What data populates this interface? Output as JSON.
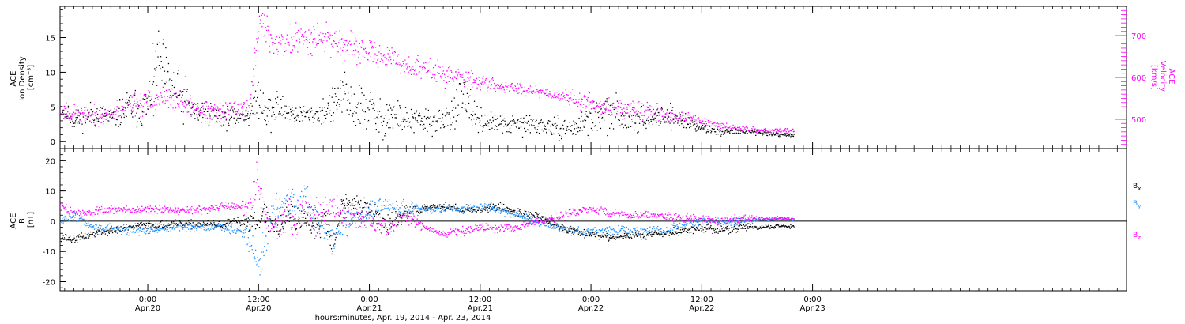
{
  "x_axis_label": "hours:minutes, Apr. 19, 2014 - Apr. 23, 2014",
  "chart_data": [
    {
      "type": "scatter",
      "panel": "top",
      "ylabel_lines": [
        "ACE",
        "Ion Density",
        "[cm⁻³]"
      ],
      "ylabel_right_lines": [
        "ACE",
        "Velocity",
        "[km/s]"
      ],
      "x_range_hours": [
        -9.5,
        106
      ],
      "ylim_left": [
        -1,
        19.5
      ],
      "ylim_right": [
        430,
        770
      ],
      "yticks_left": [
        0,
        5,
        10,
        15
      ],
      "yticks_right": [
        500,
        600,
        700
      ],
      "x_ticks": [
        {
          "hours": 0,
          "time": "0:00",
          "date": "Apr.20"
        },
        {
          "hours": 12,
          "time": "12:00",
          "date": "Apr.20"
        },
        {
          "hours": 24,
          "time": "0:00",
          "date": "Apr.21"
        },
        {
          "hours": 36,
          "time": "12:00",
          "date": "Apr.21"
        },
        {
          "hours": 48,
          "time": "0:00",
          "date": "Apr.22"
        },
        {
          "hours": 60,
          "time": "12:00",
          "date": "Apr.22"
        },
        {
          "hours": 72,
          "time": "0:00",
          "date": "Apr.23"
        }
      ],
      "series": [
        {
          "axis": "left",
          "color": "#000000",
          "x": [
            -9.5,
            -8,
            -6,
            -4,
            -2,
            0,
            1,
            2,
            3,
            4,
            5,
            6,
            8,
            10,
            11,
            12,
            13,
            14,
            16,
            18,
            20,
            21,
            22,
            24,
            25,
            26,
            28,
            30,
            32,
            34,
            36,
            38,
            40,
            42,
            44,
            46,
            48,
            50,
            52,
            54,
            56,
            58,
            60,
            62,
            64,
            66,
            68,
            70
          ],
          "y": [
            5,
            3,
            4,
            3.5,
            5,
            5,
            12,
            9,
            7,
            6,
            4,
            4.5,
            3.5,
            4,
            4,
            7,
            4,
            5,
            4,
            4,
            5,
            7,
            5,
            5,
            3,
            4,
            3,
            3,
            3,
            6,
            3,
            2.5,
            2.5,
            2.5,
            2,
            2,
            3.5,
            4,
            4,
            3,
            4,
            3,
            2,
            1.5,
            1.5,
            1.5,
            1,
            1
          ],
          "spread": [
            1.2,
            1.0,
            1.5,
            1.2,
            2.0,
            2.5,
            3.5,
            3.5,
            2.5,
            2.5,
            1.5,
            1.5,
            1.2,
            1.2,
            1.5,
            2.5,
            2.0,
            2.0,
            1.0,
            1.0,
            2.0,
            2.5,
            2.5,
            2.5,
            2.0,
            2.5,
            1.5,
            1.5,
            1.2,
            2.5,
            1.2,
            1.0,
            1.0,
            1.2,
            1.0,
            1.0,
            2.0,
            2.0,
            1.5,
            1.2,
            1.2,
            1.0,
            0.5,
            0.4,
            0.3,
            0.3,
            0.2,
            0.2
          ]
        },
        {
          "axis": "right",
          "color": "#ff00ff",
          "x": [
            -9.5,
            -6,
            -4,
            -2,
            0,
            1,
            2,
            4,
            6,
            8,
            10,
            11,
            12,
            13,
            14,
            16,
            18,
            20,
            22,
            24,
            26,
            28,
            30,
            32,
            34,
            36,
            38,
            40,
            42,
            44,
            46,
            48,
            50,
            52,
            54,
            56,
            58,
            60,
            62,
            64,
            66,
            68,
            70
          ],
          "y": [
            520,
            510,
            510,
            540,
            540,
            550,
            550,
            540,
            520,
            520,
            530,
            530,
            740,
            700,
            680,
            690,
            700,
            690,
            670,
            660,
            650,
            630,
            620,
            610,
            600,
            590,
            580,
            575,
            570,
            560,
            550,
            540,
            530,
            525,
            520,
            510,
            505,
            495,
            485,
            480,
            475,
            475,
            475
          ],
          "spread": [
            15,
            15,
            15,
            20,
            25,
            25,
            25,
            20,
            15,
            15,
            15,
            20,
            30,
            35,
            30,
            30,
            30,
            25,
            25,
            20,
            20,
            20,
            20,
            20,
            15,
            15,
            10,
            10,
            10,
            10,
            15,
            15,
            15,
            15,
            15,
            15,
            10,
            8,
            6,
            5,
            5,
            4,
            4
          ]
        }
      ]
    },
    {
      "type": "scatter",
      "panel": "bottom",
      "ylabel_lines": [
        "ACE",
        "B",
        "[nT]"
      ],
      "x_range_hours": [
        -9.5,
        106
      ],
      "ylim": [
        -23,
        24
      ],
      "yticks": [
        -20,
        -10,
        0,
        10,
        20
      ],
      "zero_line": true,
      "legend_position": "right",
      "series": [
        {
          "name": "Bx",
          "color": "#000000",
          "x": [
            -9.5,
            -8,
            -6,
            -4,
            -2,
            0,
            2,
            4,
            6,
            8,
            10,
            11,
            12,
            13,
            14,
            15,
            16,
            17,
            18,
            19,
            20,
            21,
            22,
            24,
            26,
            28,
            30,
            32,
            34,
            36,
            38,
            40,
            42,
            44,
            46,
            48,
            50,
            52,
            54,
            56,
            58,
            60,
            62,
            64,
            66,
            68,
            70
          ],
          "y": [
            -5,
            -6,
            -4,
            -3,
            -2,
            -1,
            -1,
            -1,
            -1,
            -1,
            0,
            0,
            2,
            1,
            -2,
            3,
            0,
            2,
            -2,
            4,
            -8,
            6,
            6,
            4,
            -2,
            3,
            5,
            5,
            4,
            4,
            5,
            3,
            2,
            -1,
            -3,
            -4,
            -5,
            -5,
            -4,
            -4,
            -3,
            -2,
            -3,
            -2,
            -2,
            -1.5,
            -1.5
          ],
          "spread": [
            1,
            1,
            1,
            1,
            1,
            1,
            1,
            1,
            1,
            1,
            1,
            3,
            4,
            4,
            4,
            4,
            4,
            4,
            4,
            4,
            3,
            2,
            2,
            3,
            3,
            2,
            1,
            1,
            1,
            1,
            1,
            1,
            1,
            1,
            1,
            1,
            1,
            1,
            1,
            1,
            1,
            1,
            1,
            1,
            0.5,
            0.5,
            0.5
          ]
        },
        {
          "name": "By",
          "color": "#1e90ff",
          "x": [
            -9.5,
            -8,
            -6,
            -4,
            -2,
            0,
            2,
            4,
            6,
            8,
            10,
            11,
            12,
            13,
            14,
            15,
            16,
            17,
            18,
            19,
            20,
            21,
            22,
            24,
            26,
            28,
            30,
            32,
            34,
            36,
            38,
            40,
            42,
            44,
            46,
            48,
            50,
            52,
            54,
            56,
            58,
            60,
            62,
            64,
            66,
            68,
            70
          ],
          "y": [
            0,
            2,
            -2,
            -2,
            -3,
            -3,
            -2,
            -2,
            -2,
            -2,
            -3,
            -6,
            -15,
            -2,
            5,
            6,
            5,
            7,
            2,
            -3,
            -6,
            -2,
            2,
            3,
            5,
            4,
            4,
            4,
            4,
            5,
            4,
            2,
            0,
            -2,
            -3,
            -3,
            -3,
            -3,
            -3,
            -3,
            -1,
            0,
            0,
            0,
            0.5,
            1,
            1
          ],
          "spread": [
            1,
            1,
            1,
            1,
            1,
            1,
            1,
            1,
            1,
            1,
            1,
            4,
            5,
            5,
            4,
            4,
            4,
            4,
            4,
            4,
            3,
            3,
            3,
            3,
            2,
            2,
            1,
            1,
            1,
            1,
            1,
            1,
            1,
            1,
            1,
            1,
            1,
            1,
            1,
            1,
            1,
            1,
            1,
            1,
            0.5,
            0.5,
            0.5
          ]
        },
        {
          "name": "Bz",
          "color": "#ff00ff",
          "x": [
            -9.5,
            -8,
            -6,
            -4,
            -2,
            0,
            2,
            4,
            6,
            8,
            10,
            11,
            12,
            13,
            14,
            15,
            16,
            17,
            18,
            19,
            20,
            21,
            22,
            24,
            26,
            28,
            30,
            32,
            34,
            36,
            38,
            40,
            42,
            44,
            46,
            48,
            50,
            52,
            54,
            56,
            58,
            60,
            62,
            64,
            66,
            68,
            70
          ],
          "y": [
            5,
            3,
            3,
            4,
            4,
            4,
            4,
            4,
            4,
            5,
            5,
            6,
            12,
            0,
            -3,
            5,
            -4,
            8,
            2,
            4,
            4,
            3,
            2,
            0,
            -2,
            2,
            -2,
            -4,
            -3,
            -2,
            -2,
            -2,
            0,
            1,
            3,
            4,
            3,
            2,
            2,
            2,
            1,
            1,
            0,
            1,
            1,
            1,
            1
          ],
          "spread": [
            1,
            1,
            1,
            1,
            1,
            1,
            1,
            1,
            1,
            1,
            1,
            4,
            6,
            5,
            5,
            5,
            5,
            5,
            5,
            4,
            3,
            3,
            3,
            3,
            2,
            2,
            1,
            1,
            1,
            1,
            1,
            1,
            1,
            1,
            1,
            1,
            1,
            1,
            1,
            1,
            1,
            1,
            1,
            1,
            0.5,
            0.5,
            0.5
          ]
        }
      ]
    }
  ]
}
